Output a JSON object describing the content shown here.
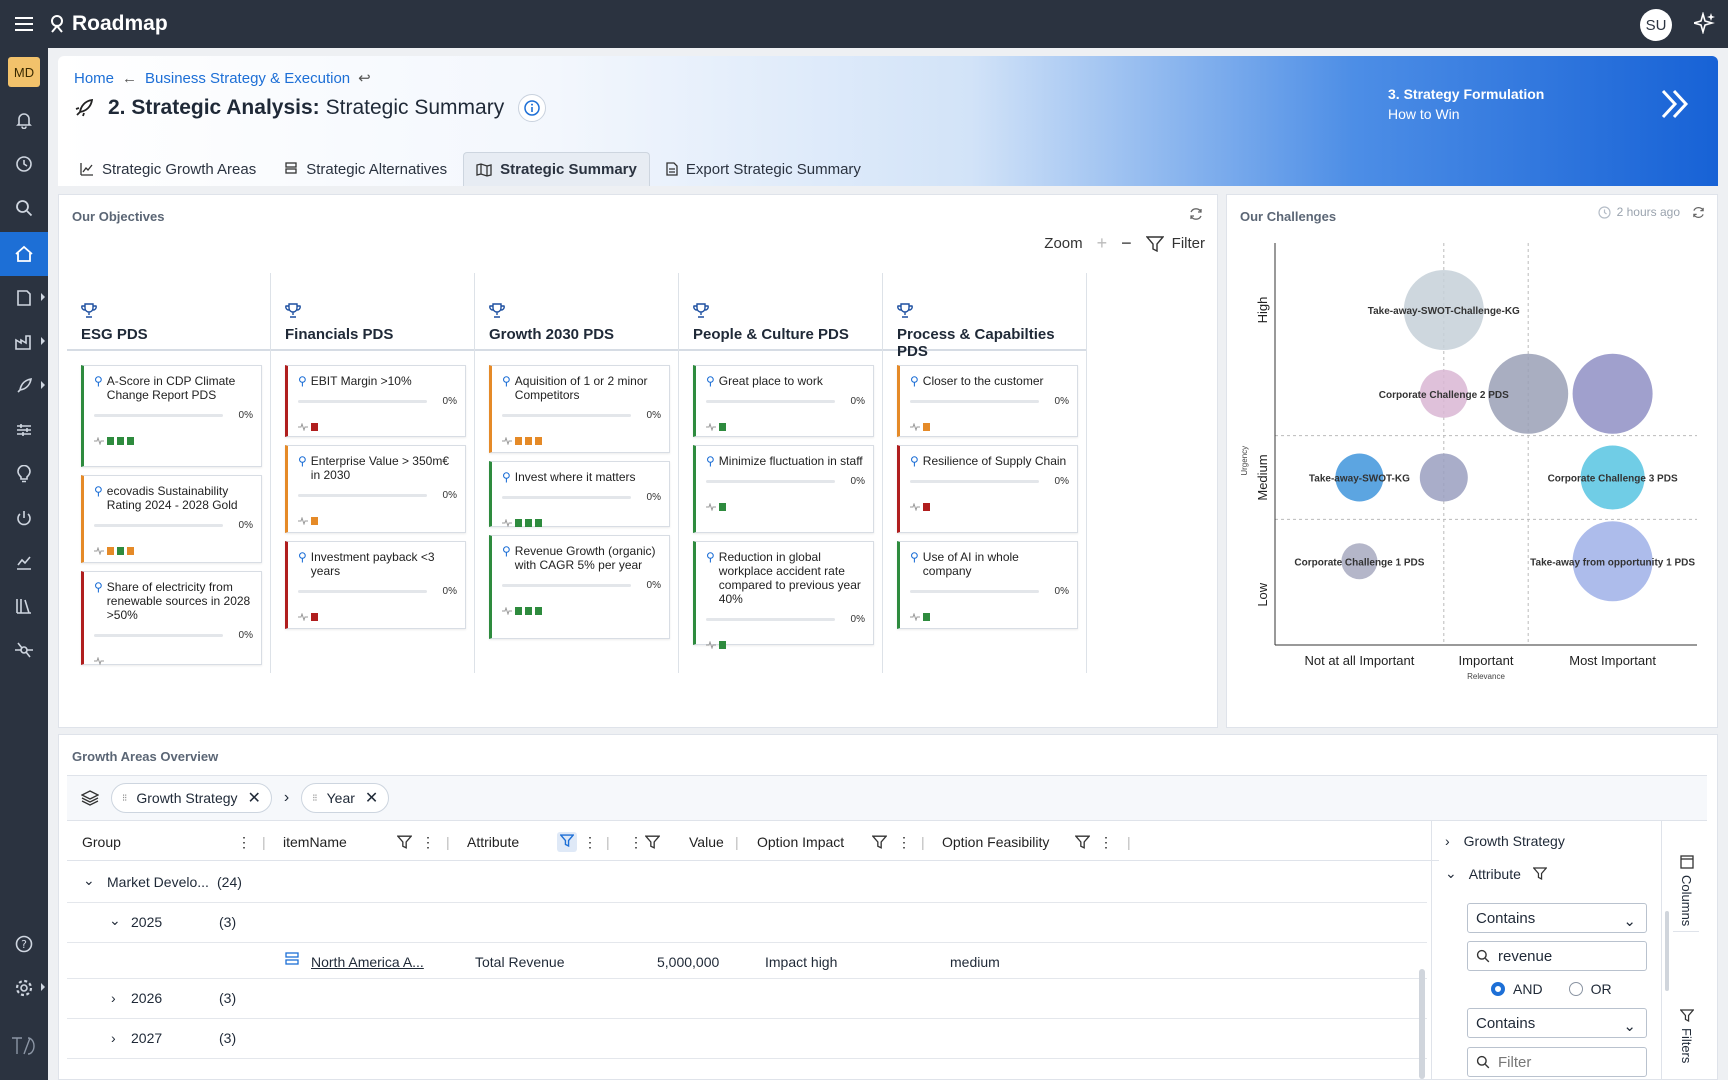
{
  "app": {
    "title": "Roadmap",
    "avatar": "SU",
    "workspace_badge": "MD"
  },
  "breadcrumb": {
    "home": "Home",
    "parent": "Business Strategy & Execution"
  },
  "page": {
    "title_bold": "2. Strategic Analysis:",
    "title_rest": "Strategic Summary"
  },
  "next_step": {
    "title": "3. Strategy Formulation",
    "subtitle": "How to Win"
  },
  "tabs": [
    {
      "label": "Strategic Growth Areas"
    },
    {
      "label": "Strategic Alternatives"
    },
    {
      "label": "Strategic Summary"
    },
    {
      "label": "Export Strategic Summary"
    }
  ],
  "objectives": {
    "title": "Our Objectives",
    "zoom_label": "Zoom",
    "filter_label": "Filter",
    "columns": [
      {
        "name": "ESG PDS",
        "cards": [
          {
            "text": "A-Score in CDP Climate Change Report PDS",
            "pct": "0%",
            "status": "green",
            "marks": [
              "g",
              "g",
              "g"
            ]
          },
          {
            "text": "ecovadis Sustainability Rating 2024 - 2028 Gold",
            "pct": "0%",
            "status": "orange",
            "marks": [
              "o",
              "g",
              "o"
            ]
          },
          {
            "text": "Share of electricity from renewable sources in 2028 >50%",
            "pct": "0%",
            "status": "red",
            "marks": []
          }
        ]
      },
      {
        "name": "Financials PDS",
        "cards": [
          {
            "text": "EBIT Margin >10%",
            "pct": "0%",
            "status": "red",
            "marks": [
              "r"
            ]
          },
          {
            "text": "Enterprise Value > 350m€ in 2030",
            "pct": "0%",
            "status": "orange",
            "marks": [
              "o"
            ]
          },
          {
            "text": "Investment payback <3 years",
            "pct": "0%",
            "status": "red",
            "marks": [
              "r"
            ]
          }
        ]
      },
      {
        "name": "Growth 2030 PDS",
        "cards": [
          {
            "text": "Aquisition of 1 or 2 minor Competitors",
            "pct": "0%",
            "status": "orange",
            "marks": [
              "o",
              "o",
              "o"
            ]
          },
          {
            "text": "Invest where it matters",
            "pct": "0%",
            "status": "green",
            "marks": [
              "g",
              "g",
              "g"
            ]
          },
          {
            "text": "Revenue Growth (organic) with CAGR 5% per year",
            "pct": "0%",
            "status": "green",
            "marks": [
              "g",
              "g",
              "g"
            ]
          }
        ]
      },
      {
        "name": "People & Culture PDS",
        "cards": [
          {
            "text": "Great place to work",
            "pct": "0%",
            "status": "green",
            "marks": [
              "g"
            ]
          },
          {
            "text": "Minimize fluctuation in staff",
            "pct": "0%",
            "status": "green",
            "marks": [
              "g"
            ]
          },
          {
            "text": "Reduction in global workplace accident rate compared to previous year 40%",
            "pct": "0%",
            "status": "green",
            "marks": [
              "g"
            ]
          }
        ]
      },
      {
        "name": "Process & Capabilties PDS",
        "cards": [
          {
            "text": "Closer to the customer",
            "pct": "0%",
            "status": "orange",
            "marks": [
              "o"
            ]
          },
          {
            "text": "Resilience of Supply Chain",
            "pct": "0%",
            "status": "red",
            "marks": [
              "r"
            ]
          },
          {
            "text": "Use of AI in whole company",
            "pct": "0%",
            "status": "green",
            "marks": [
              "g"
            ]
          }
        ]
      }
    ]
  },
  "challenges": {
    "title": "Our Challenges",
    "updated": "2 hours ago",
    "y_labels": [
      "High",
      "Medium",
      "Low"
    ],
    "y_axis_title": "Urgency",
    "x_labels": [
      "Not at all Important",
      "Important",
      "Most Important"
    ],
    "x_axis_title": "Relevance",
    "bubbles": [
      {
        "label": "Take-away-SWOT-Challenge-KG",
        "relevance": 1.5,
        "urgency": 2.5,
        "size": 3,
        "color": "#c5d0d8"
      },
      {
        "label": "Corporate Challenge 2 PDS",
        "relevance": 1.5,
        "urgency": 2.0,
        "size": 2,
        "color": "#d9b6d4"
      },
      {
        "label": "",
        "relevance": 2.0,
        "urgency": 2.0,
        "size": 3,
        "color": "#9aa0b6"
      },
      {
        "label": "",
        "relevance": 2.5,
        "urgency": 2.0,
        "size": 3,
        "color": "#8f8fc4"
      },
      {
        "label": "Take-away-SWOT-KG",
        "relevance": 1.0,
        "urgency": 1.5,
        "size": 2,
        "color": "#3f95dc"
      },
      {
        "label": "",
        "relevance": 1.5,
        "urgency": 1.5,
        "size": 2,
        "color": "#9a9fbf"
      },
      {
        "label": "Corporate Challenge 3 PDS",
        "relevance": 2.5,
        "urgency": 1.5,
        "size": 2.5,
        "color": "#57c4e2"
      },
      {
        "label": "Corporate Challenge 1 PDS",
        "relevance": 1.0,
        "urgency": 1.0,
        "size": 1.5,
        "color": "#a7a9c0"
      },
      {
        "label": "Take-away from opportunity 1 PDS",
        "relevance": 2.5,
        "urgency": 1.0,
        "size": 3,
        "color": "#9fb0e8"
      }
    ]
  },
  "growth": {
    "title": "Growth Areas Overview",
    "chips": [
      "Growth Strategy",
      "Year"
    ],
    "headers": [
      "Group",
      "itemName",
      "Attribute",
      "Value",
      "Option Impact",
      "Option Feasibility"
    ],
    "group_row": {
      "label": "Market Develo...",
      "count": "(24)"
    },
    "years": [
      {
        "year": "2025",
        "count": "(3)"
      },
      {
        "year": "2026",
        "count": "(3)"
      },
      {
        "year": "2027",
        "count": "(3)"
      }
    ],
    "detail": {
      "item": "North America A...",
      "attribute": "Total Revenue",
      "value": "5,000,000",
      "impact": "Impact high",
      "feasibility": "medium"
    },
    "side": {
      "growth_strategy": "Growth Strategy",
      "attribute": "Attribute",
      "op1": "Contains",
      "search1": "revenue",
      "and": "AND",
      "or": "OR",
      "op2": "Contains",
      "search2_placeholder": "Filter",
      "columns_tab": "Columns",
      "filters_tab": "Filters"
    }
  }
}
